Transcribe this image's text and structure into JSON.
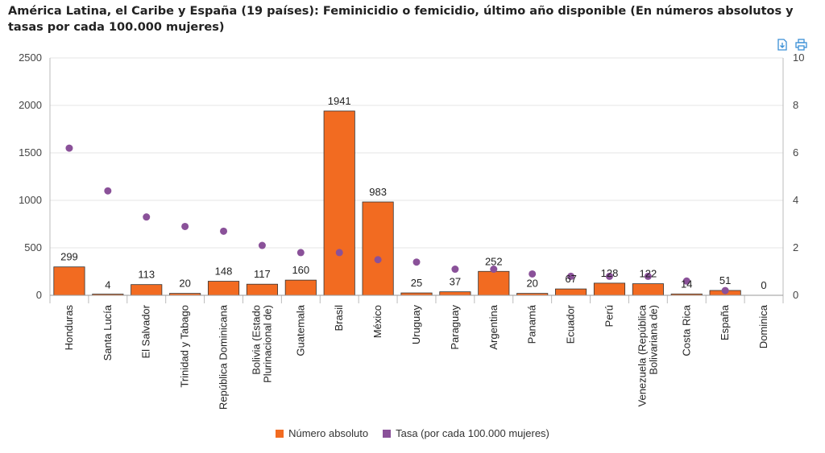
{
  "chart_data": {
    "type": "bar",
    "title": "América Latina, el Caribe y España (19 países): Feminicidio o femicidio, último año disponible (En números absolutos y tasas por cada 100.000 mujeres)",
    "categories": [
      "Honduras",
      "Santa Lucía",
      "El Salvador",
      "Trinidad y Tabago",
      "República Dominicana",
      "Bolivia (Estado Plurinacional de)",
      "Guatemala",
      "Brasil",
      "México",
      "Uruguay",
      "Paraguay",
      "Argentina",
      "Panamá",
      "Ecuador",
      "Perú",
      "Venezuela (República Bolivariana de)",
      "Costa Rica",
      "España",
      "Dominica"
    ],
    "category_lines": [
      [
        "Honduras"
      ],
      [
        "Santa Lucía"
      ],
      [
        "El Salvador"
      ],
      [
        "Trinidad y Tabago"
      ],
      [
        "República Dominicana"
      ],
      [
        "Bolivia (Estado",
        "Plurinacional de)"
      ],
      [
        "Guatemala"
      ],
      [
        "Brasil"
      ],
      [
        "México"
      ],
      [
        "Uruguay"
      ],
      [
        "Paraguay"
      ],
      [
        "Argentina"
      ],
      [
        "Panamá"
      ],
      [
        "Ecuador"
      ],
      [
        "Perú"
      ],
      [
        "Venezuela (República",
        "Bolivariana de)"
      ],
      [
        "Costa Rica"
      ],
      [
        "España"
      ],
      [
        "Dominica"
      ]
    ],
    "series": [
      {
        "name": "Número absoluto",
        "type": "bar",
        "axis": "left",
        "color": "#f26b21",
        "values": [
          299,
          4,
          113,
          20,
          148,
          117,
          160,
          1941,
          983,
          25,
          37,
          252,
          20,
          67,
          128,
          122,
          14,
          51,
          0
        ]
      },
      {
        "name": "Tasa (por cada 100.000 mujeres)",
        "type": "scatter",
        "axis": "right",
        "color": "#8a5199",
        "values": [
          6.2,
          4.4,
          3.3,
          2.9,
          2.7,
          2.1,
          1.8,
          1.8,
          1.5,
          1.4,
          1.1,
          1.1,
          0.9,
          0.8,
          0.8,
          0.8,
          0.6,
          0.2,
          null
        ]
      }
    ],
    "y_left": {
      "ylim": [
        0,
        2500
      ],
      "ticks": [
        0,
        500,
        1000,
        1500,
        2000,
        2500
      ]
    },
    "y_right": {
      "ylim": [
        0,
        10
      ],
      "ticks": [
        0,
        2,
        4,
        6,
        8,
        10
      ]
    },
    "legend_position": "bottom-center",
    "grid": true
  },
  "toolbar": {
    "download_icon": "download-icon",
    "print_icon": "print-icon"
  }
}
